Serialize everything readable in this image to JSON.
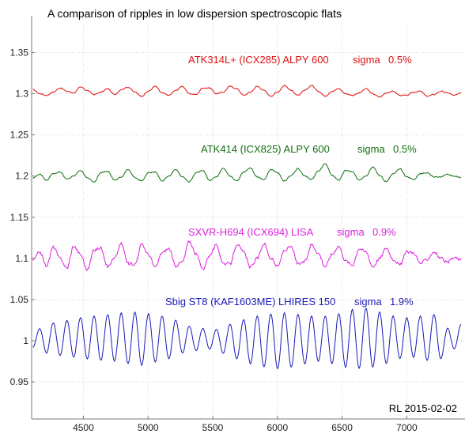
{
  "chart_data": {
    "type": "line",
    "title": "A comparison of ripples in low dispersion spectroscopic flats",
    "xlabel": "",
    "ylabel": "",
    "xlim": [
      4100,
      7450
    ],
    "ylim": [
      0.905,
      1.385
    ],
    "x_ticks": [
      "4500",
      "5000",
      "5500",
      "6000",
      "6500",
      "7000"
    ],
    "y_ticks": [
      "0.95",
      "1",
      "1.05",
      "1.1",
      "1.15",
      "1.2",
      "1.25",
      "1.3",
      "1.35"
    ],
    "grid": true,
    "series": [
      {
        "name": "ATK314L+ (ICX285) ALPY 600",
        "sigma_label": "sigma",
        "sigma": "0.5%",
        "color": "#e01010",
        "y_range": [
          1.29,
          1.315
        ],
        "y": [
          1.305,
          1.3,
          1.298,
          1.302,
          1.307,
          1.303,
          1.301,
          1.308,
          1.304,
          1.299,
          1.302,
          1.306,
          1.299,
          1.305,
          1.308,
          1.302,
          1.297,
          1.303,
          1.309,
          1.301,
          1.298,
          1.304,
          1.309,
          1.3,
          1.299,
          1.307,
          1.307,
          1.3,
          1.302,
          1.309,
          1.306,
          1.298,
          1.302,
          1.309,
          1.304,
          1.297,
          1.302,
          1.31,
          1.304,
          1.298,
          1.304,
          1.31,
          1.303,
          1.297,
          1.303,
          1.306,
          1.3,
          1.298,
          1.301,
          1.306,
          1.3,
          1.296,
          1.301,
          1.303,
          1.298,
          1.298,
          1.302,
          1.303,
          1.297,
          1.299,
          1.303,
          1.301,
          1.298,
          1.301
        ]
      },
      {
        "name": "ATK414  (ICX825)  ALPY 600",
        "sigma_label": "sigma",
        "sigma": "0.5%",
        "color": "#107010",
        "y_range": [
          1.19,
          1.215
        ],
        "y": [
          1.198,
          1.202,
          1.195,
          1.203,
          1.205,
          1.196,
          1.2,
          1.207,
          1.198,
          1.193,
          1.204,
          1.206,
          1.195,
          1.199,
          1.208,
          1.198,
          1.194,
          1.204,
          1.205,
          1.194,
          1.2,
          1.208,
          1.199,
          1.193,
          1.204,
          1.207,
          1.195,
          1.199,
          1.209,
          1.2,
          1.194,
          1.205,
          1.21,
          1.199,
          1.196,
          1.208,
          1.204,
          1.194,
          1.201,
          1.209,
          1.2,
          1.196,
          1.206,
          1.215,
          1.201,
          1.195,
          1.207,
          1.205,
          1.195,
          1.2,
          1.211,
          1.201,
          1.193,
          1.203,
          1.209,
          1.199,
          1.196,
          1.203,
          1.204,
          1.199,
          1.199,
          1.202,
          1.2,
          1.198
        ]
      },
      {
        "name": "SXVR-H694  (ICX694)   LISA",
        "sigma_label": "sigma",
        "sigma": "0.9%",
        "color": "#dd20dd",
        "y_range": [
          1.082,
          1.127
        ],
        "y": [
          1.098,
          1.108,
          1.091,
          1.114,
          1.1,
          1.088,
          1.115,
          1.105,
          1.086,
          1.11,
          1.113,
          1.09,
          1.1,
          1.118,
          1.094,
          1.093,
          1.117,
          1.105,
          1.089,
          1.107,
          1.112,
          1.091,
          1.096,
          1.121,
          1.105,
          1.087,
          1.104,
          1.116,
          1.094,
          1.093,
          1.117,
          1.108,
          1.089,
          1.1,
          1.118,
          1.1,
          1.09,
          1.11,
          1.114,
          1.093,
          1.096,
          1.117,
          1.106,
          1.09,
          1.105,
          1.115,
          1.097,
          1.092,
          1.112,
          1.108,
          1.09,
          1.1,
          1.113,
          1.099,
          1.092,
          1.108,
          1.107,
          1.094,
          1.099,
          1.108,
          1.1,
          1.095,
          1.101,
          1.098
        ]
      },
      {
        "name": "Sbig ST8  (KAF1603ME)  LHIRES 150",
        "sigma_label": "sigma",
        "sigma": "1.9%",
        "color": "#1a1ab8",
        "y_range": [
          0.965,
          1.04
        ],
        "y": [
          0.992,
          1.015,
          0.985,
          1.022,
          0.982,
          1.025,
          0.98,
          1.028,
          0.978,
          1.03,
          0.976,
          1.032,
          0.975,
          1.034,
          0.972,
          1.035,
          0.97,
          1.033,
          0.974,
          1.03,
          0.978,
          1.025,
          0.985,
          1.018,
          0.988,
          1.015,
          0.99,
          1.014,
          0.985,
          1.02,
          0.978,
          1.026,
          0.972,
          1.03,
          0.968,
          1.033,
          0.966,
          1.034,
          0.968,
          1.032,
          0.972,
          1.03,
          0.975,
          1.03,
          0.972,
          1.033,
          0.968,
          1.038,
          0.966,
          1.04,
          0.968,
          1.035,
          0.972,
          1.03,
          0.978,
          1.028,
          0.98,
          1.03,
          0.976,
          1.032,
          0.978,
          1.015,
          0.99,
          1.02
        ]
      }
    ],
    "annotation": "RL 2015-02-02"
  }
}
